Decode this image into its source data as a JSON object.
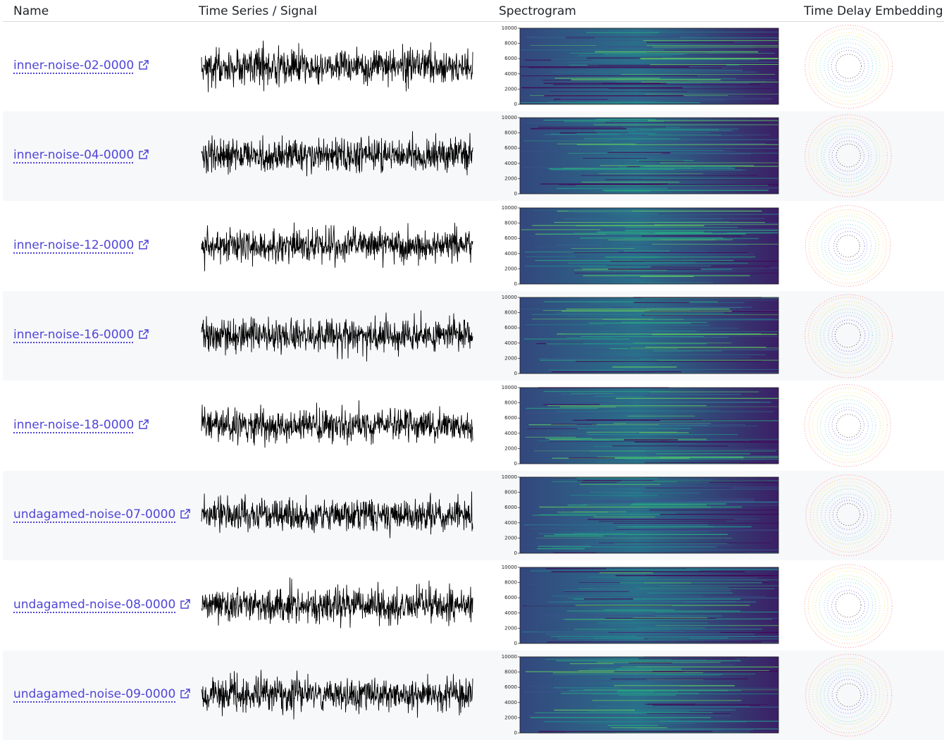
{
  "header": {
    "columns": [
      "Name",
      "Time Series / Signal",
      "Spectrogram",
      "Time Delay Embedding"
    ]
  },
  "rows": [
    {
      "name": "inner-noise-02-0000"
    },
    {
      "name": "inner-noise-04-0000"
    },
    {
      "name": "inner-noise-12-0000"
    },
    {
      "name": "inner-noise-16-0000"
    },
    {
      "name": "inner-noise-18-0000"
    },
    {
      "name": "undagamed-noise-07-0000"
    },
    {
      "name": "undagamed-noise-08-0000"
    },
    {
      "name": "undagamed-noise-09-0000"
    }
  ],
  "spectrogram": {
    "yticks": [
      10000,
      8000,
      6000,
      4000,
      2000,
      0
    ]
  }
}
